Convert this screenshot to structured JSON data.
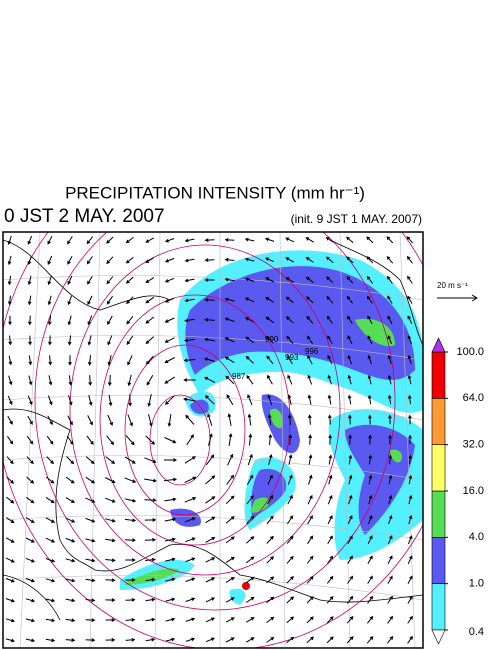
{
  "header": {
    "title": "PRECIPITATION INTENSITY (mm hr⁻¹)",
    "valid_time": "0 JST 2 MAY. 2007",
    "init_time": "(init. 9 JST 1 MAY. 2007)"
  },
  "wind_legend": {
    "label": "20 m s⁻¹"
  },
  "contour_labels": [
    "990",
    "987",
    "993",
    "996"
  ],
  "colorbar": {
    "ticks": [
      {
        "value": 0.4,
        "label": "0.4"
      },
      {
        "value": 1,
        "label": "1.0"
      },
      {
        "value": 4,
        "label": "4.0"
      },
      {
        "value": 16,
        "label": "16.0"
      },
      {
        "value": 32,
        "label": "32.0"
      },
      {
        "value": 64,
        "label": "64.0"
      },
      {
        "value": 100,
        "label": "100.0"
      }
    ],
    "colors": [
      "#ffffff",
      "#55f0ff",
      "#5a5af0",
      "#55dd55",
      "#ffff66",
      "#ff9933",
      "#ee0000",
      "#aa33ee"
    ]
  }
}
